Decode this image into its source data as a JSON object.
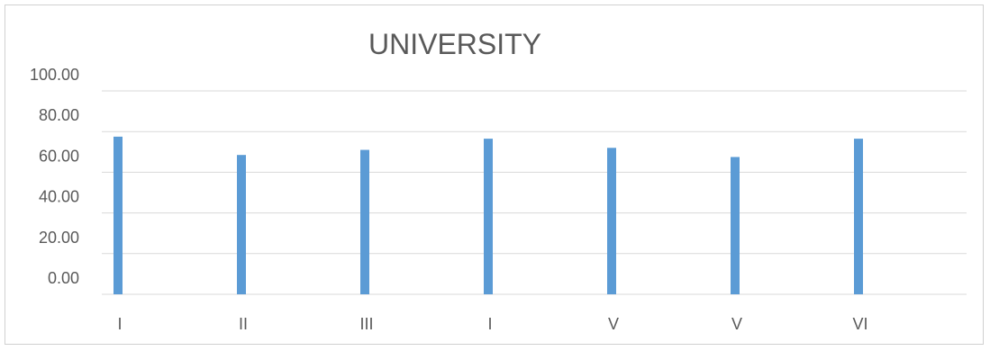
{
  "chart_data": {
    "type": "bar",
    "title": "UNIVERSITY",
    "xlabel": "",
    "ylabel": "",
    "categories": [
      "I",
      "II",
      "III",
      "I",
      "V",
      "V",
      "VI"
    ],
    "series": [
      {
        "values": [
          77.5,
          68.5,
          71.0,
          76.5,
          72.0,
          67.5,
          76.5
        ]
      }
    ],
    "ylim": [
      0,
      100
    ],
    "yticks": [
      "0.00",
      "20.00",
      "40.00",
      "60.00",
      "80.00",
      "100.00"
    ],
    "grid": true,
    "legend": "none",
    "bar_color": "#5b9bd5"
  }
}
